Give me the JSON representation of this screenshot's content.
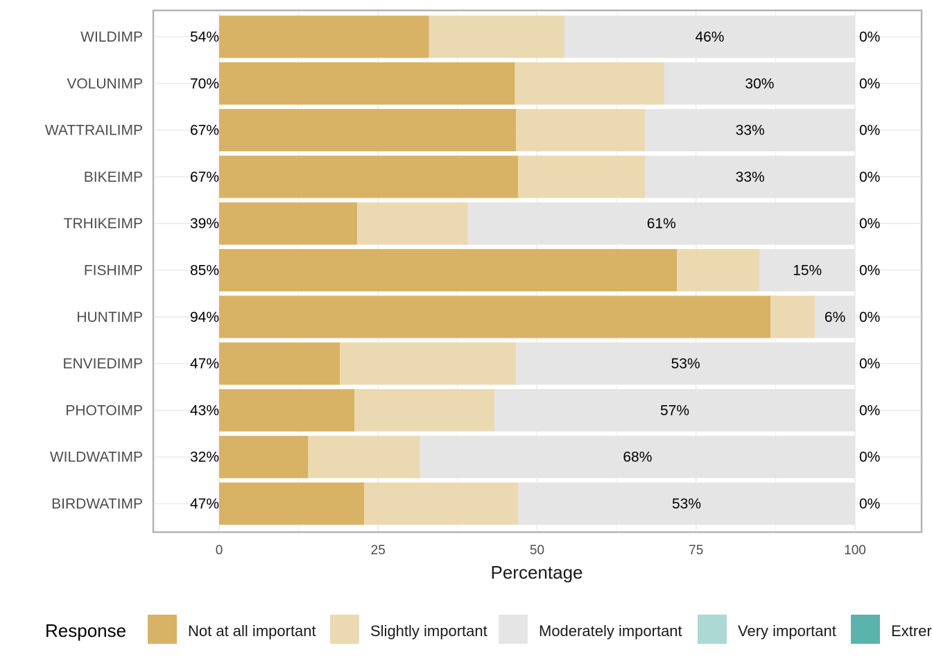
{
  "chart_data": {
    "type": "bar",
    "orientation": "horizontal",
    "stacked": true,
    "categories": [
      "WILDIMP",
      "VOLUNIMP",
      "WATTRAILIMP",
      "BIKEIMP",
      "TRHIKEIMP",
      "FISHIMP",
      "HUNTIMP",
      "ENVIEDIMP",
      "PHOTOIMP",
      "WILDWATIMP",
      "BIRDWATIMP"
    ],
    "series": [
      {
        "name": "Not at all important",
        "color": "#D8B365",
        "values": [
          33,
          46.5,
          46.7,
          47,
          21.7,
          72,
          86.7,
          19,
          21.3,
          14,
          22.8
        ]
      },
      {
        "name": "Slightly important",
        "color": "#EBD9B2",
        "values": [
          21.3,
          23.5,
          20.3,
          20,
          17.4,
          13,
          7,
          27.7,
          22,
          17.6,
          24.2
        ]
      },
      {
        "name": "Moderately important",
        "color": "#E5E5E5",
        "values": [
          45.7,
          30,
          33,
          33,
          60.9,
          15,
          6.3,
          53.3,
          56.7,
          68.4,
          53
        ]
      },
      {
        "name": "Very important",
        "color": "#ACD9D4",
        "values": [
          0,
          0,
          0,
          0,
          0,
          0,
          0,
          0,
          0,
          0,
          0
        ]
      },
      {
        "name": "Extremely important",
        "color": "#5AB4AC",
        "values": [
          0,
          0,
          0,
          0,
          0,
          0,
          0,
          0,
          0,
          0,
          0
        ]
      }
    ],
    "left_labels": [
      "54%",
      "70%",
      "67%",
      "67%",
      "39%",
      "85%",
      "94%",
      "47%",
      "43%",
      "32%",
      "47%"
    ],
    "center_labels": [
      "46%",
      "30%",
      "33%",
      "33%",
      "61%",
      "15%",
      "6%",
      "53%",
      "57%",
      "68%",
      "53%"
    ],
    "right_labels": [
      "0%",
      "0%",
      "0%",
      "0%",
      "0%",
      "0%",
      "0%",
      "0%",
      "0%",
      "0%",
      "0%"
    ],
    "xlabel": "Percentage",
    "ylabel": "",
    "xlim": [
      0,
      100
    ],
    "xticks": [
      "0",
      "25",
      "50",
      "75",
      "100"
    ],
    "grid": true,
    "legend": {
      "title": "Response",
      "position": "bottom",
      "entries": [
        "Not at all important",
        "Slightly important",
        "Moderately important",
        "Very important",
        "Extrer"
      ]
    }
  }
}
